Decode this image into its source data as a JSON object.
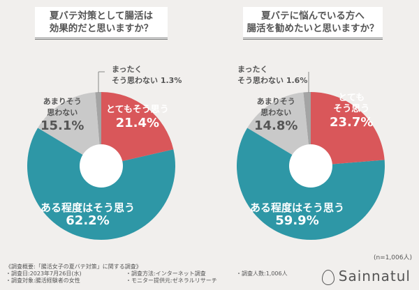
{
  "chart_data": [
    {
      "type": "pie",
      "title": "夏バテ対策として腸活は効果的だと思いますか？",
      "slices": [
        {
          "label": "とてもそう思う",
          "value": 21.4,
          "color": "#d9575a"
        },
        {
          "label": "ある程度はそう思う",
          "value": 62.2,
          "color": "#2e97a6"
        },
        {
          "label": "あまりそう思わない",
          "value": 15.1,
          "color": "#c9c9c9"
        },
        {
          "label": "まったくそう思わない",
          "value": 1.3,
          "color": "#a4a4a4"
        }
      ],
      "pct": [
        "21.4%",
        "62.2%",
        "15.1%",
        "1.3%"
      ]
    },
    {
      "type": "pie",
      "title": "夏バテに悩んでいる方へ腸活を勧めたいと思いますか？",
      "slices": [
        {
          "label": "とてもそう思う",
          "value": 23.7,
          "color": "#d9575a"
        },
        {
          "label": "ある程度はそう思う",
          "value": 59.9,
          "color": "#2e97a6"
        },
        {
          "label": "あまりそう思わない",
          "value": 14.8,
          "color": "#c9c9c9"
        },
        {
          "label": "まったくそう思わない",
          "value": 1.6,
          "color": "#a4a4a4"
        }
      ],
      "pct": [
        "23.7%",
        "59.9%",
        "14.8%",
        "1.6%"
      ]
    }
  ],
  "titles": [
    [
      "夏バテ対策として腸活は",
      "効果的だと思いますか？"
    ],
    [
      "夏バテに悩んでいる方へ",
      "腸活を勧めたいと思いますか？"
    ]
  ],
  "labels": {
    "very": "とてもそう思う",
    "very_a": "とても",
    "very_b": "そう思う",
    "some": "ある程度はそう思う",
    "not_a": "あまりそう",
    "not_b": "思わない",
    "none_a": "まったく",
    "none_b": "そう思わない"
  },
  "n": "(n=1,006人)",
  "footer": {
    "summary": "《調査概要:「腸活女子の夏バテ対策」に関する調査》",
    "date": "・調査日:2023年7月26日(水)",
    "target": "・調査対象:腸活経験者の女性",
    "method": "・調査方法:インターネット調査",
    "monitor": "・モニター提供元:ゼネラルリサーチ",
    "count": "・調査人数:1,006人"
  },
  "logo": "Sainnatul"
}
